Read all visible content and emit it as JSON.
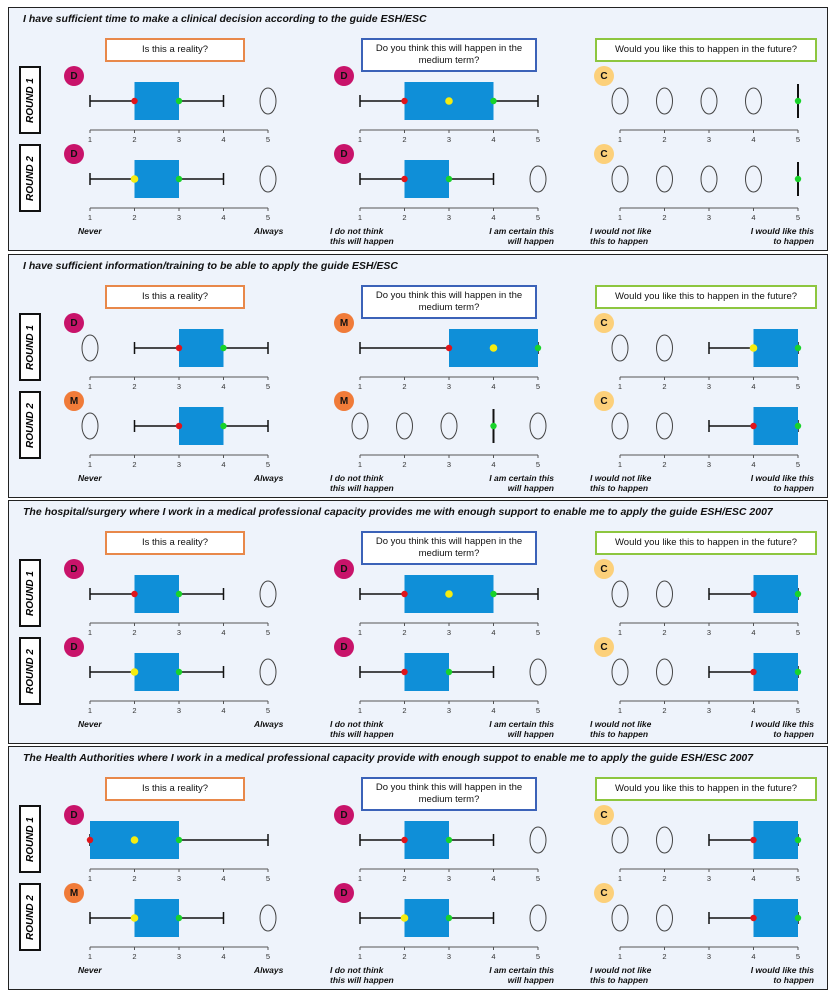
{
  "colors": {
    "box": "#0f8fd8",
    "whisker": "#111111",
    "min_dot": "#e0151b",
    "max_dot": "#19d32a",
    "median_dot": "#f5ec10"
  },
  "columns": [
    {
      "key": "reality",
      "header": "Is this a reality?",
      "low_label": "Never",
      "high_label": "Always"
    },
    {
      "key": "medium",
      "header": "Do you think this will happen in the medium term?",
      "low_label": "I do not think this will happen",
      "high_label": "I am certain this will happen"
    },
    {
      "key": "future",
      "header": "Would you like this to happen in the future?",
      "low_label": "I would not like this to happen",
      "high_label": "I would like this to happen"
    }
  ],
  "round_labels": [
    "ROUND 1",
    "ROUND 2"
  ],
  "tick_labels": [
    "1",
    "2",
    "3",
    "4",
    "5"
  ],
  "chart_data": [
    {
      "type": "boxplot",
      "title": "I have sufficient time to make a clinical decision according to the guide ESH/ESC",
      "plots": [
        [
          {
            "badge": "D",
            "min": 1,
            "q1": 2,
            "median": 2,
            "q3": 3,
            "max": 4,
            "min_dot": 2,
            "max_dot": 3,
            "median_dot": null,
            "empty": [
              5
            ]
          },
          {
            "badge": "D",
            "min": 1,
            "q1": 2,
            "median": 3,
            "q3": 4,
            "max": 5,
            "min_dot": 2,
            "max_dot": 4,
            "median_dot": 3,
            "empty": []
          },
          {
            "badge": "C",
            "min": 5,
            "q1": 5,
            "median": 5,
            "q3": 5,
            "max": 5,
            "min_dot": null,
            "max_dot": 5,
            "median_dot": null,
            "empty": [
              1,
              2,
              3,
              4
            ]
          }
        ],
        [
          {
            "badge": "D",
            "min": 1,
            "q1": 2,
            "median": 2,
            "q3": 3,
            "max": 4,
            "min_dot": null,
            "max_dot": 3,
            "median_dot": 2,
            "empty": [
              5
            ]
          },
          {
            "badge": "D",
            "min": 1,
            "q1": 2,
            "median": 3,
            "q3": 3,
            "max": 4,
            "min_dot": 2,
            "max_dot": 3,
            "median_dot": null,
            "empty": [
              5
            ]
          },
          {
            "badge": "C",
            "min": 5,
            "q1": 5,
            "median": 5,
            "q3": 5,
            "max": 5,
            "min_dot": null,
            "max_dot": 5,
            "median_dot": null,
            "empty": [
              1,
              2,
              3,
              4
            ]
          }
        ]
      ]
    },
    {
      "type": "boxplot",
      "title": "I have sufficient information/training to be able to apply the guide ESH/ESC",
      "plots": [
        [
          {
            "badge": "D",
            "min": 2,
            "q1": 3,
            "median": 3,
            "q3": 4,
            "max": 5,
            "min_dot": 3,
            "max_dot": 4,
            "median_dot": null,
            "empty": [
              1
            ]
          },
          {
            "badge": "M",
            "min": 1,
            "q1": 3,
            "median": 4,
            "q3": 5,
            "max": 5,
            "min_dot": 3,
            "max_dot": 5,
            "median_dot": 4,
            "empty": []
          },
          {
            "badge": "C",
            "min": 3,
            "q1": 4,
            "median": 4,
            "q3": 5,
            "max": 5,
            "min_dot": null,
            "max_dot": 5,
            "median_dot": 4,
            "empty": [
              1,
              2
            ]
          }
        ],
        [
          {
            "badge": "M",
            "min": 2,
            "q1": 3,
            "median": 3,
            "q3": 4,
            "max": 5,
            "min_dot": 3,
            "max_dot": 4,
            "median_dot": null,
            "empty": [
              1
            ]
          },
          {
            "badge": "M",
            "min": 4,
            "q1": 4,
            "median": 4,
            "q3": 4,
            "max": 4,
            "min_dot": null,
            "max_dot": 4,
            "median_dot": null,
            "empty": [
              1,
              2,
              3,
              5
            ]
          },
          {
            "badge": "C",
            "min": 3,
            "q1": 4,
            "median": 4,
            "q3": 5,
            "max": 5,
            "min_dot": 4,
            "max_dot": 5,
            "median_dot": null,
            "empty": [
              1,
              2
            ]
          }
        ]
      ]
    },
    {
      "type": "boxplot",
      "title": "The hospital/surgery where I work in a medical professional capacity provides me with enough support to enable me to apply the guide ESH/ESC 2007",
      "plots": [
        [
          {
            "badge": "D",
            "min": 1,
            "q1": 2,
            "median": 2,
            "q3": 3,
            "max": 4,
            "min_dot": 2,
            "max_dot": 3,
            "median_dot": null,
            "empty": [
              5
            ]
          },
          {
            "badge": "D",
            "min": 1,
            "q1": 2,
            "median": 3,
            "q3": 4,
            "max": 5,
            "min_dot": 2,
            "max_dot": 4,
            "median_dot": 3,
            "empty": []
          },
          {
            "badge": "C",
            "min": 3,
            "q1": 4,
            "median": 4,
            "q3": 5,
            "max": 5,
            "min_dot": 4,
            "max_dot": 5,
            "median_dot": null,
            "empty": [
              1,
              2
            ]
          }
        ],
        [
          {
            "badge": "D",
            "min": 1,
            "q1": 2,
            "median": 2,
            "q3": 3,
            "max": 4,
            "min_dot": null,
            "max_dot": 3,
            "median_dot": 2,
            "empty": [
              5
            ]
          },
          {
            "badge": "D",
            "min": 1,
            "q1": 2,
            "median": 3,
            "q3": 3,
            "max": 4,
            "min_dot": 2,
            "max_dot": 3,
            "median_dot": null,
            "empty": [
              5
            ]
          },
          {
            "badge": "C",
            "min": 3,
            "q1": 4,
            "median": 4,
            "q3": 5,
            "max": 5,
            "min_dot": 4,
            "max_dot": 5,
            "median_dot": null,
            "empty": [
              1,
              2
            ]
          }
        ]
      ]
    },
    {
      "type": "boxplot",
      "title": "The Health Authorities where I work in a medical professional capacity provide with enough suppot to enable me to apply the guide ESH/ESC 2007",
      "plots": [
        [
          {
            "badge": "D",
            "min": 1,
            "q1": 1,
            "median": 2,
            "q3": 3,
            "max": 5,
            "min_dot": 1,
            "max_dot": 3,
            "median_dot": 2,
            "empty": []
          },
          {
            "badge": "D",
            "min": 1,
            "q1": 2,
            "median": 2,
            "q3": 3,
            "max": 4,
            "min_dot": 2,
            "max_dot": 3,
            "median_dot": null,
            "empty": [
              5
            ]
          },
          {
            "badge": "C",
            "min": 3,
            "q1": 4,
            "median": 4,
            "q3": 5,
            "max": 5,
            "min_dot": 4,
            "max_dot": 5,
            "median_dot": null,
            "empty": [
              1,
              2
            ]
          }
        ],
        [
          {
            "badge": "M",
            "min": 1,
            "q1": 2,
            "median": 2,
            "q3": 3,
            "max": 4,
            "min_dot": null,
            "max_dot": 3,
            "median_dot": 2,
            "empty": [
              5
            ]
          },
          {
            "badge": "D",
            "min": 1,
            "q1": 2,
            "median": 2,
            "q3": 3,
            "max": 4,
            "min_dot": null,
            "max_dot": 3,
            "median_dot": 2,
            "empty": [
              5
            ]
          },
          {
            "badge": "C",
            "min": 3,
            "q1": 4,
            "median": 4,
            "q3": 5,
            "max": 5,
            "min_dot": 4,
            "max_dot": 5,
            "median_dot": null,
            "empty": [
              1,
              2
            ]
          }
        ]
      ]
    }
  ]
}
